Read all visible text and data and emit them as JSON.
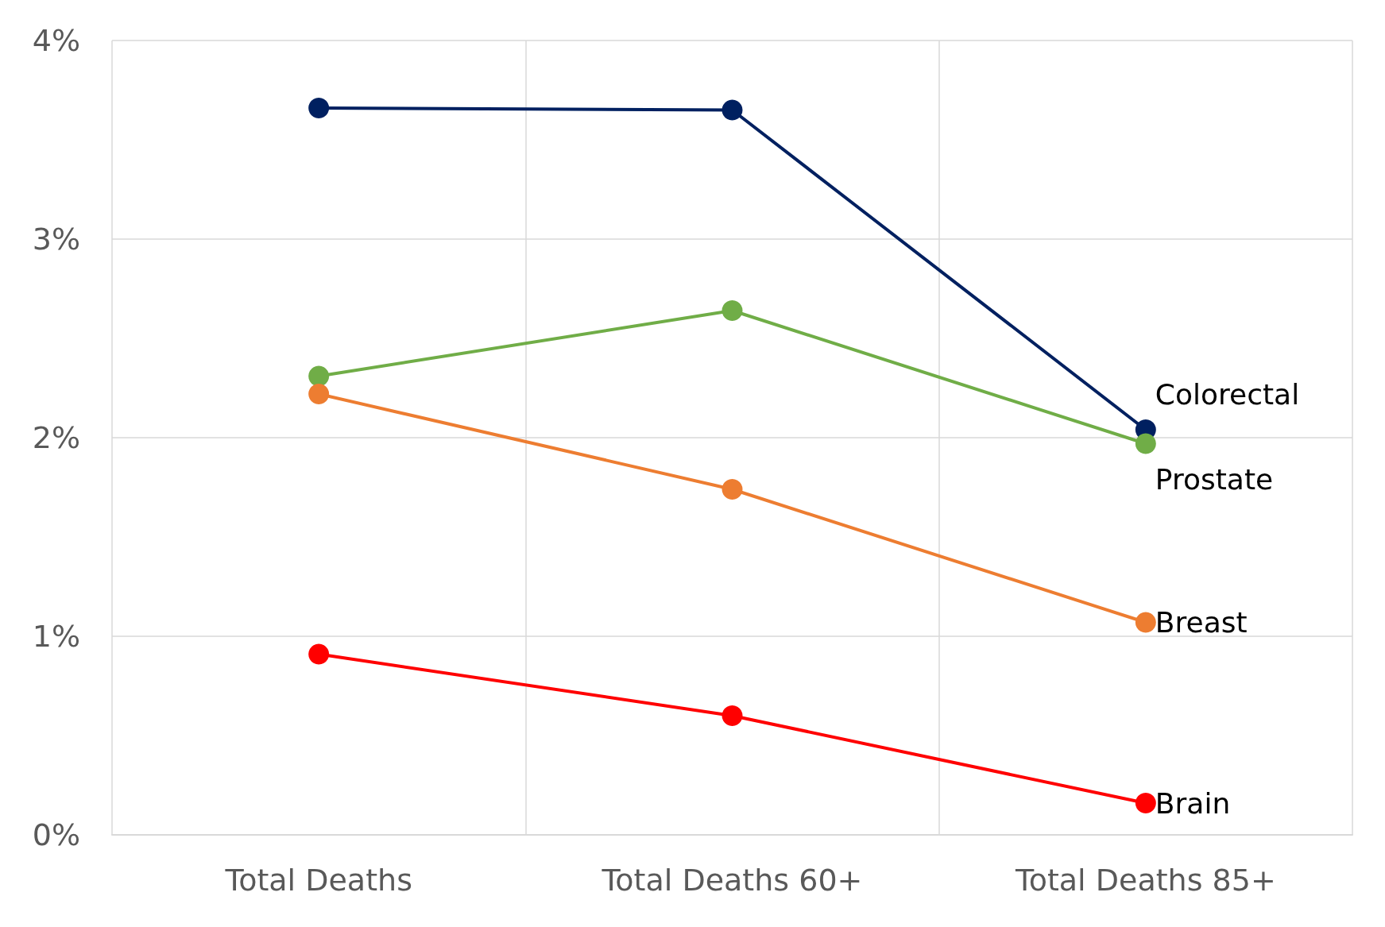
{
  "chart_data": {
    "type": "line",
    "categories": [
      "Total Deaths",
      "Total Deaths 60+",
      "Total Deaths 85+"
    ],
    "series": [
      {
        "name": "Colorectal",
        "color": "#002060",
        "values": [
          3.66,
          3.65,
          2.04
        ]
      },
      {
        "name": "Prostate",
        "color": "#70ad47",
        "values": [
          2.31,
          2.64,
          1.97
        ]
      },
      {
        "name": "Breast",
        "color": "#ed7d31",
        "values": [
          2.22,
          1.74,
          1.07
        ]
      },
      {
        "name": "Brain",
        "color": "#ff0000",
        "values": [
          0.91,
          0.6,
          0.16
        ]
      }
    ],
    "ylim": [
      0,
      4
    ],
    "yticks": [
      {
        "value": 0,
        "label": "0%"
      },
      {
        "value": 1,
        "label": "1%"
      },
      {
        "value": 2,
        "label": "2%"
      },
      {
        "value": 3,
        "label": "3%"
      },
      {
        "value": 4,
        "label": "4%"
      }
    ],
    "grid": true,
    "legend": false,
    "marker": "circle",
    "line_style": "solid"
  }
}
